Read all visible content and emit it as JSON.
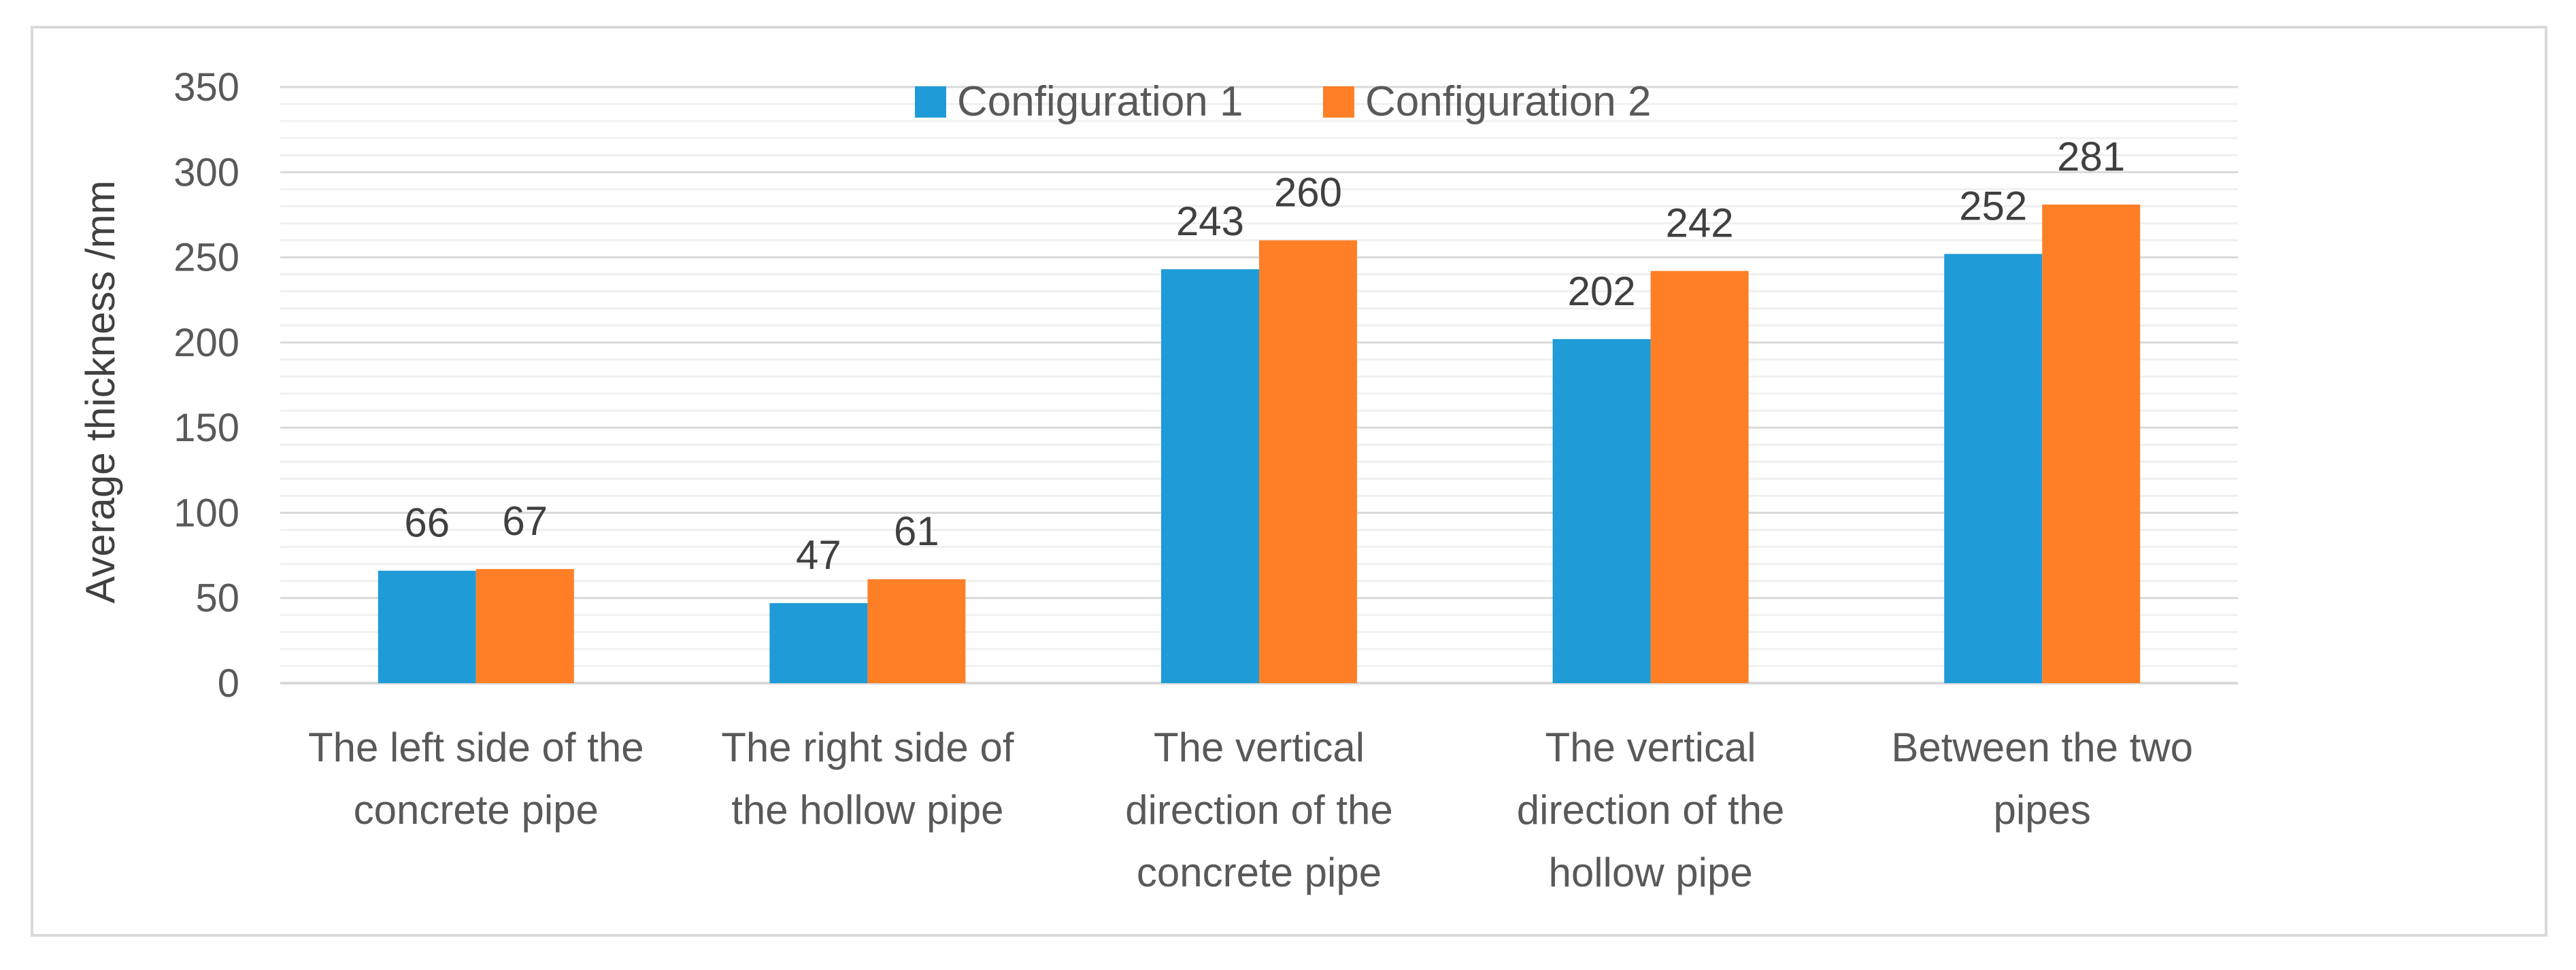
{
  "chart_data": {
    "type": "bar",
    "title": "",
    "xlabel": "",
    "ylabel": "Average thickness /mm",
    "ylim": [
      0,
      350
    ],
    "yticks": [
      0,
      50,
      100,
      150,
      200,
      250,
      300,
      350
    ],
    "grid": true,
    "legend_position": "top-center",
    "categories": [
      [
        "The left side of the",
        "concrete pipe"
      ],
      [
        "The right side of",
        "the hollow pipe"
      ],
      [
        "The vertical",
        "direction of the",
        "concrete pipe"
      ],
      [
        "The vertical",
        "direction of the",
        "hollow pipe"
      ],
      [
        "Between the two",
        "pipes"
      ]
    ],
    "series": [
      {
        "name": "Configuration 1",
        "color": "#1F9BD7",
        "values": [
          66,
          47,
          243,
          202,
          252
        ]
      },
      {
        "name": "Configuration 2",
        "color": "#FF7F27",
        "values": [
          67,
          61,
          260,
          242,
          281
        ]
      }
    ]
  }
}
